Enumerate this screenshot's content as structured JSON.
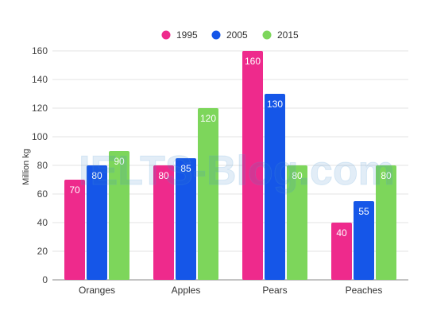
{
  "chart_data": {
    "type": "bar",
    "categories": [
      "Oranges",
      "Apples",
      "Pears",
      "Peaches"
    ],
    "series": [
      {
        "name": "1995",
        "color": "#ee2a8c",
        "values": [
          70,
          80,
          160,
          40
        ]
      },
      {
        "name": "2005",
        "color": "#1556e8",
        "values": [
          80,
          85,
          130,
          55
        ]
      },
      {
        "name": "2015",
        "color": "#7dd65b",
        "values": [
          90,
          120,
          80,
          80
        ]
      }
    ],
    "ylabel": "Million kg",
    "ylim": [
      0,
      160
    ],
    "yticks": [
      0,
      20,
      40,
      60,
      80,
      100,
      120,
      140,
      160
    ],
    "grid": true,
    "legend": "top-center",
    "watermark": "IELTS-Blog.com"
  }
}
